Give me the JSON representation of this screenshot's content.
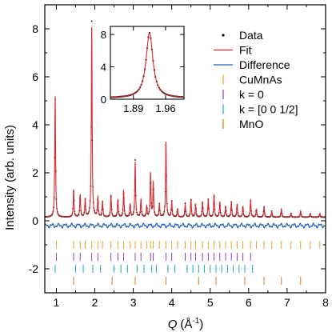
{
  "chart_data": {
    "type": "line",
    "title": "",
    "xlabel_symbol": "Q",
    "xlabel_unit": "(Å",
    "xlabel_exp": "-1",
    "xlabel_close": ")",
    "ylabel": "Intensity (arb. units)",
    "xlim": [
      0.7,
      8.0
    ],
    "ylim": [
      -3.0,
      9.0
    ],
    "xticks": [
      1,
      2,
      3,
      4,
      5,
      6,
      7,
      8
    ],
    "xtick_labels": [
      "1",
      "2",
      "3",
      "4",
      "5",
      "6",
      "7",
      "8"
    ],
    "yticks": [
      -2,
      0,
      2,
      4,
      6,
      8
    ],
    "ytick_labels": [
      "-2",
      "0",
      "2",
      "4",
      "6",
      "8"
    ],
    "legend": {
      "placement": "top-right",
      "entries": [
        {
          "label": "Data",
          "marker": "dot",
          "color": "#000000"
        },
        {
          "label": "Fit",
          "marker": "line",
          "color": "#d42a2f"
        },
        {
          "label": "Difference",
          "marker": "line",
          "color": "#1f5fb0"
        },
        {
          "label": "CuMnAs",
          "marker": "tick",
          "color": "#f0a030"
        },
        {
          "label": "k = 0",
          "marker": "tick",
          "color": "#8e3fc8"
        },
        {
          "label": "k = [0 0 1/2]",
          "marker": "tick",
          "color": "#1aa7bd"
        },
        {
          "label": "MnO",
          "marker": "tick",
          "color": "#d9742a"
        }
      ]
    },
    "baseline": 0.15,
    "peaks": [
      {
        "q": 0.97,
        "h": 5.2
      },
      {
        "q": 1.45,
        "h": 1.3
      },
      {
        "q": 1.62,
        "h": 1.1
      },
      {
        "q": 1.75,
        "h": 0.9
      },
      {
        "q": 1.92,
        "h": 8.3
      },
      {
        "q": 2.08,
        "h": 1.0
      },
      {
        "q": 2.2,
        "h": 0.8
      },
      {
        "q": 2.42,
        "h": 1.1
      },
      {
        "q": 2.6,
        "h": 0.9
      },
      {
        "q": 2.75,
        "h": 1.3
      },
      {
        "q": 2.92,
        "h": 0.7
      },
      {
        "q": 3.05,
        "h": 2.5
      },
      {
        "q": 3.2,
        "h": 0.9
      },
      {
        "q": 3.35,
        "h": 0.6
      },
      {
        "q": 3.45,
        "h": 2.0
      },
      {
        "q": 3.52,
        "h": 1.6
      },
      {
        "q": 3.68,
        "h": 0.7
      },
      {
        "q": 3.85,
        "h": 3.3
      },
      {
        "q": 4.0,
        "h": 0.8
      },
      {
        "q": 4.15,
        "h": 0.5
      },
      {
        "q": 4.35,
        "h": 0.7
      },
      {
        "q": 4.5,
        "h": 0.9
      },
      {
        "q": 4.62,
        "h": 0.7
      },
      {
        "q": 4.8,
        "h": 0.8
      },
      {
        "q": 4.95,
        "h": 0.9
      },
      {
        "q": 5.1,
        "h": 1.1
      },
      {
        "q": 5.25,
        "h": 0.8
      },
      {
        "q": 5.4,
        "h": 0.6
      },
      {
        "q": 5.55,
        "h": 0.8
      },
      {
        "q": 5.7,
        "h": 0.7
      },
      {
        "q": 5.85,
        "h": 0.6
      },
      {
        "q": 6.05,
        "h": 0.9
      },
      {
        "q": 6.2,
        "h": 0.5
      },
      {
        "q": 6.4,
        "h": 0.6
      },
      {
        "q": 6.6,
        "h": 0.4
      },
      {
        "q": 6.85,
        "h": 0.5
      },
      {
        "q": 7.1,
        "h": 0.3
      },
      {
        "q": 7.35,
        "h": 0.4
      },
      {
        "q": 7.6,
        "h": 0.3
      },
      {
        "q": 7.85,
        "h": 0.3
      }
    ],
    "difference_offset": -0.2,
    "tick_rows": [
      {
        "name": "CuMnAs",
        "y": -1.0,
        "color": "#f0a030",
        "q": [
          1.0,
          1.45,
          1.62,
          1.75,
          1.92,
          2.08,
          2.2,
          2.42,
          2.6,
          2.75,
          2.92,
          3.05,
          3.2,
          3.35,
          3.45,
          3.52,
          3.68,
          3.85,
          4.0,
          4.15,
          4.35,
          4.5,
          4.62,
          4.8,
          4.95,
          5.1,
          5.25,
          5.4,
          5.55,
          5.7,
          5.85,
          6.05,
          6.2,
          6.4,
          6.6,
          6.85,
          7.1,
          7.35,
          7.6,
          7.85
        ]
      },
      {
        "name": "k = 0",
        "y": -1.5,
        "color": "#8e3fc8",
        "q": [
          1.0,
          1.45,
          1.62,
          1.92,
          2.08,
          2.42,
          2.6,
          2.75,
          3.05,
          3.2,
          3.45,
          3.52,
          3.85,
          4.0,
          4.35,
          4.5,
          4.62,
          4.8,
          4.95,
          5.1,
          5.25,
          5.4,
          5.55,
          5.7,
          5.85,
          6.05
        ]
      },
      {
        "name": "k = [0 0 1/2]",
        "y": -2.0,
        "color": "#1aa7bd",
        "q": [
          0.97,
          1.5,
          1.7,
          1.95,
          2.15,
          2.5,
          2.68,
          2.85,
          3.1,
          3.28,
          3.48,
          3.6,
          3.9,
          4.08,
          4.4,
          4.55,
          4.7,
          4.85,
          5.0,
          5.15,
          5.3,
          5.45,
          5.6,
          5.75,
          5.9,
          6.1
        ]
      },
      {
        "name": "MnO",
        "y": -2.5,
        "color": "#d9742a",
        "q": [
          1.45,
          2.45,
          3.05,
          3.85,
          4.7,
          5.15,
          5.9,
          6.4,
          6.85,
          7.35
        ]
      }
    ],
    "inset": {
      "xlim": [
        1.84,
        2.0
      ],
      "ylim": [
        0,
        9
      ],
      "xticks": [
        1.89,
        1.96
      ],
      "xtick_labels": [
        "1.89",
        "1.96"
      ],
      "yticks": [
        0,
        4,
        8
      ],
      "ytick_labels": [
        "0",
        "4",
        "8"
      ],
      "peak_q": 1.925,
      "peak_h": 8.2
    }
  }
}
